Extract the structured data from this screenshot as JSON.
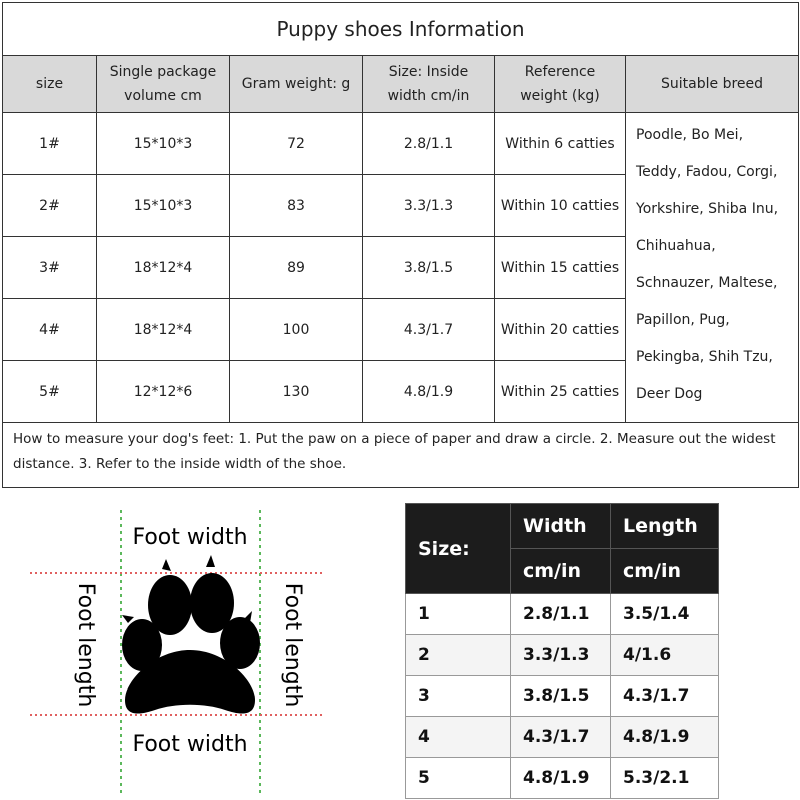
{
  "info_table": {
    "title": "Puppy shoes Information",
    "headers": [
      "size",
      "Single package volume cm",
      "Gram weight: g",
      "Size: Inside width cm/in",
      "Reference weight (kg)",
      "Suitable breed"
    ],
    "rows": [
      [
        "1#",
        "15*10*3",
        "72",
        "2.8/1.1",
        "Within 6 catties"
      ],
      [
        "2#",
        "15*10*3",
        "83",
        "3.3/1.3",
        "Within 10 catties"
      ],
      [
        "3#",
        "18*12*4",
        "89",
        "3.8/1.5",
        "Within 15 catties"
      ],
      [
        "4#",
        "18*12*4",
        "100",
        "4.3/1.7",
        "Within 20 catties"
      ],
      [
        "5#",
        "12*12*6",
        "130",
        "4.8/1.9",
        "Within 25 catties"
      ]
    ],
    "suitable_breed": [
      "Poodle, Bo Mei,",
      "Teddy, Fadou, Corgi,",
      "Yorkshire, Shiba Inu,",
      "Chihuahua,",
      "Schnauzer, Maltese,",
      "Papillon, Pug,",
      "Pekingba, Shih Tzu,",
      "Deer Dog"
    ],
    "note": "How to measure your dog's feet: 1. Put the paw on a piece of paper and draw a circle. 2. Measure out the widest distance. 3. Refer to the inside width of the shoe."
  },
  "diagram": {
    "top_label": "Foot width",
    "bottom_label": "Foot width",
    "left_label": "Foot length",
    "right_label": "Foot length"
  },
  "size_table": {
    "size_header": "Size:",
    "columns": [
      {
        "name": "Width",
        "unit": "cm/in"
      },
      {
        "name": "Length",
        "unit": "cm/in"
      }
    ],
    "rows": [
      [
        "1",
        "2.8/1.1",
        "3.5/1.4"
      ],
      [
        "2",
        "3.3/1.3",
        "4/1.6"
      ],
      [
        "3",
        "3.8/1.5",
        "4.3/1.7"
      ],
      [
        "4",
        "4.3/1.7",
        "4.8/1.9"
      ],
      [
        "5",
        "4.8/1.9",
        "5.3/2.1"
      ]
    ]
  }
}
